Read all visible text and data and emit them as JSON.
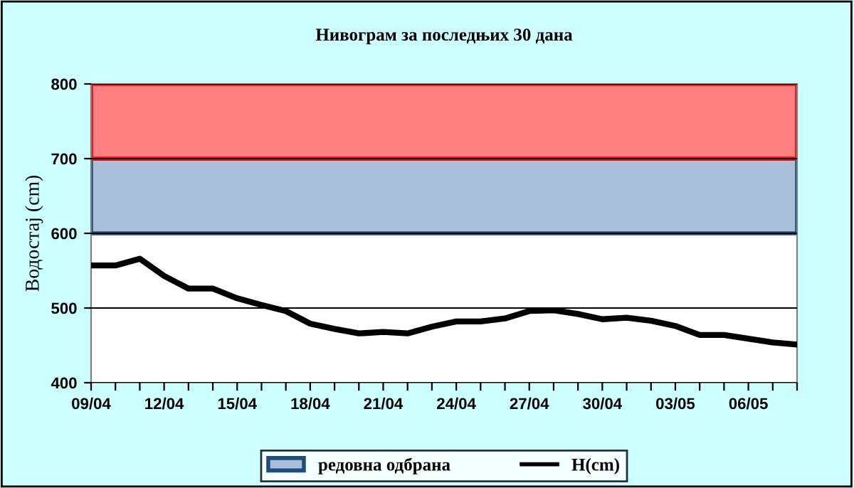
{
  "chart_data": {
    "type": "line",
    "title": "Нивограм за последњих 30 дана",
    "ylabel": "Водостај (cm)",
    "categories": [
      "09/04",
      null,
      null,
      "12/04",
      null,
      null,
      "15/04",
      null,
      null,
      "18/04",
      null,
      null,
      "21/04",
      null,
      null,
      "24/04",
      null,
      null,
      "27/04",
      null,
      null,
      "30/04",
      null,
      null,
      "03/05",
      null,
      null,
      "06/05",
      null,
      null
    ],
    "series": [
      {
        "name": "H(cm)",
        "color": "#000000",
        "values": [
          557,
          557,
          566,
          543,
          526,
          526,
          513,
          504,
          496,
          479,
          472,
          466,
          468,
          466,
          475,
          482,
          482,
          486,
          496,
          497,
          492,
          485,
          487,
          483,
          476,
          464,
          464,
          459,
          454,
          451
        ]
      }
    ],
    "bands": [
      {
        "axis": "y",
        "from": 600,
        "to": 700,
        "label": "редовна одбрана",
        "color": "#a9bfdc"
      },
      {
        "axis": "y",
        "from": 700,
        "to": 800,
        "color": "#ff8080"
      }
    ],
    "ylim": [
      400,
      800
    ],
    "yticks": [
      400,
      500,
      600,
      700,
      800
    ],
    "grid": "y",
    "legend": "bottom",
    "line_style": "solid",
    "marker": "none"
  }
}
